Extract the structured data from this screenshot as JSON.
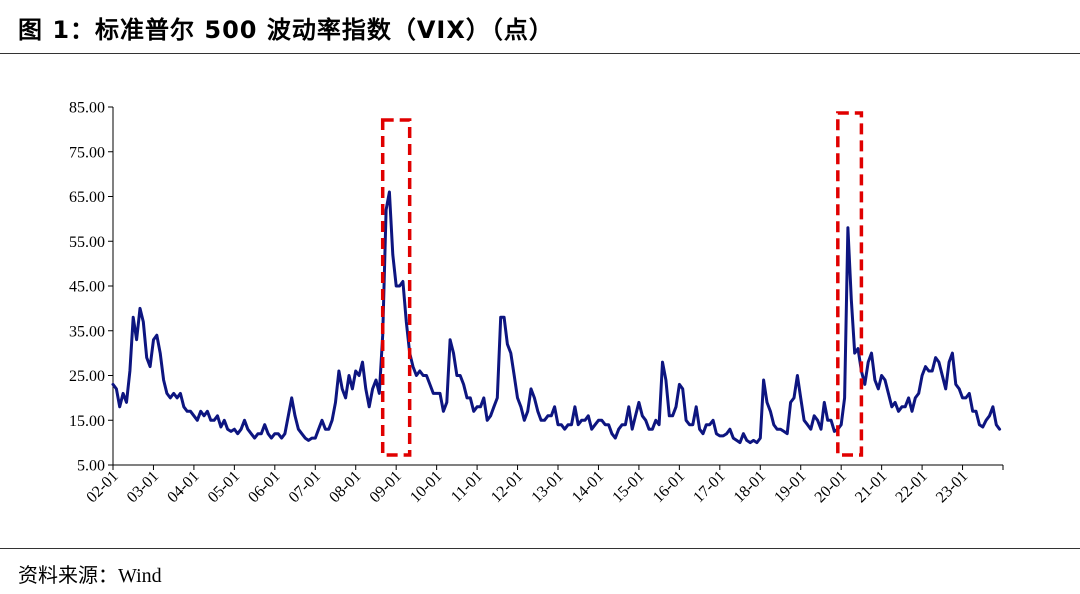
{
  "title": "图 1：标准普尔 500 波动率指数（VIX）（点）",
  "source_prefix": "资料来源：",
  "source_name": "Wind",
  "chart_data": {
    "type": "line",
    "title": "图 1：标准普尔 500 波动率指数（VIX）（点）",
    "xlabel": "",
    "ylabel": "",
    "ylim": [
      5,
      85
    ],
    "yticks": [
      "5.00",
      "15.00",
      "25.00",
      "35.00",
      "45.00",
      "55.00",
      "65.00",
      "75.00",
      "85.00"
    ],
    "xlim": [
      "2002-01",
      "2023-12"
    ],
    "xticks": [
      "02-01",
      "03-01",
      "04-01",
      "05-01",
      "06-01",
      "07-01",
      "08-01",
      "09-01",
      "10-01",
      "11-01",
      "12-01",
      "13-01",
      "14-01",
      "15-01",
      "16-01",
      "17-01",
      "18-01",
      "19-01",
      "20-01",
      "21-01",
      "22-01",
      "23-01"
    ],
    "grid": false,
    "legend": "none",
    "line_color": "#0d1580",
    "highlight_color": "#e00000",
    "highlights": [
      {
        "x_start": "2008-09",
        "x_end": "2009-05"
      },
      {
        "x_start": "2019-12",
        "x_end": "2020-07"
      }
    ],
    "series": [
      {
        "points": [
          [
            "2002-01",
            23
          ],
          [
            "2002-02",
            22
          ],
          [
            "2002-03",
            18
          ],
          [
            "2002-04",
            21
          ],
          [
            "2002-05",
            19
          ],
          [
            "2002-06",
            26
          ],
          [
            "2002-07",
            38
          ],
          [
            "2002-08",
            33
          ],
          [
            "2002-09",
            40
          ],
          [
            "2002-10",
            37
          ],
          [
            "2002-11",
            29
          ],
          [
            "2002-12",
            27
          ],
          [
            "2003-01",
            33
          ],
          [
            "2003-02",
            34
          ],
          [
            "2003-03",
            30
          ],
          [
            "2003-04",
            24
          ],
          [
            "2003-05",
            21
          ],
          [
            "2003-06",
            20
          ],
          [
            "2003-07",
            21
          ],
          [
            "2003-08",
            20
          ],
          [
            "2003-09",
            21
          ],
          [
            "2003-10",
            18
          ],
          [
            "2003-11",
            17
          ],
          [
            "2003-12",
            17
          ],
          [
            "2004-01",
            16
          ],
          [
            "2004-02",
            15
          ],
          [
            "2004-03",
            17
          ],
          [
            "2004-04",
            16
          ],
          [
            "2004-05",
            17
          ],
          [
            "2004-06",
            15
          ],
          [
            "2004-07",
            15
          ],
          [
            "2004-08",
            16
          ],
          [
            "2004-09",
            13.5
          ],
          [
            "2004-10",
            15
          ],
          [
            "2004-11",
            13
          ],
          [
            "2004-12",
            12.5
          ],
          [
            "2005-01",
            13
          ],
          [
            "2005-02",
            12
          ],
          [
            "2005-03",
            13
          ],
          [
            "2005-04",
            15
          ],
          [
            "2005-05",
            13
          ],
          [
            "2005-06",
            12
          ],
          [
            "2005-07",
            11
          ],
          [
            "2005-08",
            12
          ],
          [
            "2005-09",
            12
          ],
          [
            "2005-10",
            14
          ],
          [
            "2005-11",
            12
          ],
          [
            "2005-12",
            11
          ],
          [
            "2006-01",
            12
          ],
          [
            "2006-02",
            12
          ],
          [
            "2006-03",
            11
          ],
          [
            "2006-04",
            12
          ],
          [
            "2006-05",
            16
          ],
          [
            "2006-06",
            20
          ],
          [
            "2006-07",
            16
          ],
          [
            "2006-08",
            13
          ],
          [
            "2006-09",
            12
          ],
          [
            "2006-10",
            11
          ],
          [
            "2006-11",
            10.5
          ],
          [
            "2006-12",
            11
          ],
          [
            "2007-01",
            11
          ],
          [
            "2007-02",
            13
          ],
          [
            "2007-03",
            15
          ],
          [
            "2007-04",
            13
          ],
          [
            "2007-05",
            13
          ],
          [
            "2007-06",
            15
          ],
          [
            "2007-07",
            19
          ],
          [
            "2007-08",
            26
          ],
          [
            "2007-09",
            22
          ],
          [
            "2007-10",
            20
          ],
          [
            "2007-11",
            25
          ],
          [
            "2007-12",
            22
          ],
          [
            "2008-01",
            26
          ],
          [
            "2008-02",
            25
          ],
          [
            "2008-03",
            28
          ],
          [
            "2008-04",
            22
          ],
          [
            "2008-05",
            18
          ],
          [
            "2008-06",
            22
          ],
          [
            "2008-07",
            24
          ],
          [
            "2008-08",
            21
          ],
          [
            "2008-09",
            34
          ],
          [
            "2008-10",
            62
          ],
          [
            "2008-11",
            66
          ],
          [
            "2008-12",
            52
          ],
          [
            "2009-01",
            45
          ],
          [
            "2009-02",
            45
          ],
          [
            "2009-03",
            46
          ],
          [
            "2009-04",
            37
          ],
          [
            "2009-05",
            30
          ],
          [
            "2009-06",
            27
          ],
          [
            "2009-07",
            25
          ],
          [
            "2009-08",
            26
          ],
          [
            "2009-09",
            25
          ],
          [
            "2009-10",
            25
          ],
          [
            "2009-11",
            23
          ],
          [
            "2009-12",
            21
          ],
          [
            "2010-01",
            21
          ],
          [
            "2010-02",
            21
          ],
          [
            "2010-03",
            17
          ],
          [
            "2010-04",
            19
          ],
          [
            "2010-05",
            33
          ],
          [
            "2010-06",
            30
          ],
          [
            "2010-07",
            25
          ],
          [
            "2010-08",
            25
          ],
          [
            "2010-09",
            23
          ],
          [
            "2010-10",
            20
          ],
          [
            "2010-11",
            20
          ],
          [
            "2010-12",
            17
          ],
          [
            "2011-01",
            18
          ],
          [
            "2011-02",
            18
          ],
          [
            "2011-03",
            20
          ],
          [
            "2011-04",
            15
          ],
          [
            "2011-05",
            16
          ],
          [
            "2011-06",
            18
          ],
          [
            "2011-07",
            20
          ],
          [
            "2011-08",
            38
          ],
          [
            "2011-09",
            38
          ],
          [
            "2011-10",
            32
          ],
          [
            "2011-11",
            30
          ],
          [
            "2011-12",
            25
          ],
          [
            "2012-01",
            20
          ],
          [
            "2012-02",
            18
          ],
          [
            "2012-03",
            15
          ],
          [
            "2012-04",
            17
          ],
          [
            "2012-05",
            22
          ],
          [
            "2012-06",
            20
          ],
          [
            "2012-07",
            17
          ],
          [
            "2012-08",
            15
          ],
          [
            "2012-09",
            15
          ],
          [
            "2012-10",
            16
          ],
          [
            "2012-11",
            16
          ],
          [
            "2012-12",
            18
          ],
          [
            "2013-01",
            14
          ],
          [
            "2013-02",
            14
          ],
          [
            "2013-03",
            13
          ],
          [
            "2013-04",
            14
          ],
          [
            "2013-05",
            14
          ],
          [
            "2013-06",
            18
          ],
          [
            "2013-07",
            14
          ],
          [
            "2013-08",
            15
          ],
          [
            "2013-09",
            15
          ],
          [
            "2013-10",
            16
          ],
          [
            "2013-11",
            13
          ],
          [
            "2013-12",
            14
          ],
          [
            "2014-01",
            15
          ],
          [
            "2014-02",
            15
          ],
          [
            "2014-03",
            14
          ],
          [
            "2014-04",
            14
          ],
          [
            "2014-05",
            12
          ],
          [
            "2014-06",
            11
          ],
          [
            "2014-07",
            13
          ],
          [
            "2014-08",
            14
          ],
          [
            "2014-09",
            14
          ],
          [
            "2014-10",
            18
          ],
          [
            "2014-11",
            13
          ],
          [
            "2014-12",
            16
          ],
          [
            "2015-01",
            19
          ],
          [
            "2015-02",
            16
          ],
          [
            "2015-03",
            15
          ],
          [
            "2015-04",
            13
          ],
          [
            "2015-05",
            13
          ],
          [
            "2015-06",
            15
          ],
          [
            "2015-07",
            14
          ],
          [
            "2015-08",
            28
          ],
          [
            "2015-09",
            24
          ],
          [
            "2015-10",
            16
          ],
          [
            "2015-11",
            16
          ],
          [
            "2015-12",
            18
          ],
          [
            "2016-01",
            23
          ],
          [
            "2016-02",
            22
          ],
          [
            "2016-03",
            15
          ],
          [
            "2016-04",
            14
          ],
          [
            "2016-05",
            14
          ],
          [
            "2016-06",
            18
          ],
          [
            "2016-07",
            13
          ],
          [
            "2016-08",
            12
          ],
          [
            "2016-09",
            14
          ],
          [
            "2016-10",
            14
          ],
          [
            "2016-11",
            15
          ],
          [
            "2016-12",
            12
          ],
          [
            "2017-01",
            11.5
          ],
          [
            "2017-02",
            11.5
          ],
          [
            "2017-03",
            12
          ],
          [
            "2017-04",
            13
          ],
          [
            "2017-05",
            11
          ],
          [
            "2017-06",
            10.5
          ],
          [
            "2017-07",
            10
          ],
          [
            "2017-08",
            12
          ],
          [
            "2017-09",
            10.5
          ],
          [
            "2017-10",
            10
          ],
          [
            "2017-11",
            10.5
          ],
          [
            "2017-12",
            10
          ],
          [
            "2018-01",
            11
          ],
          [
            "2018-02",
            24
          ],
          [
            "2018-03",
            19
          ],
          [
            "2018-04",
            17
          ],
          [
            "2018-05",
            14
          ],
          [
            "2018-06",
            13
          ],
          [
            "2018-07",
            13
          ],
          [
            "2018-08",
            12.5
          ],
          [
            "2018-09",
            12
          ],
          [
            "2018-10",
            19
          ],
          [
            "2018-11",
            20
          ],
          [
            "2018-12",
            25
          ],
          [
            "2019-01",
            20
          ],
          [
            "2019-02",
            15
          ],
          [
            "2019-03",
            14
          ],
          [
            "2019-04",
            13
          ],
          [
            "2019-05",
            16
          ],
          [
            "2019-06",
            15
          ],
          [
            "2019-07",
            13
          ],
          [
            "2019-08",
            19
          ],
          [
            "2019-09",
            15
          ],
          [
            "2019-10",
            15
          ],
          [
            "2019-11",
            12.5
          ],
          [
            "2019-12",
            13
          ],
          [
            "2020-01",
            14
          ],
          [
            "2020-02",
            20
          ],
          [
            "2020-03",
            58
          ],
          [
            "2020-04",
            42
          ],
          [
            "2020-05",
            30
          ],
          [
            "2020-06",
            31
          ],
          [
            "2020-07",
            26
          ],
          [
            "2020-08",
            23
          ],
          [
            "2020-09",
            28
          ],
          [
            "2020-10",
            30
          ],
          [
            "2020-11",
            24
          ],
          [
            "2020-12",
            22
          ],
          [
            "2021-01",
            25
          ],
          [
            "2021-02",
            24
          ],
          [
            "2021-03",
            21
          ],
          [
            "2021-04",
            18
          ],
          [
            "2021-05",
            19
          ],
          [
            "2021-06",
            17
          ],
          [
            "2021-07",
            18
          ],
          [
            "2021-08",
            18
          ],
          [
            "2021-09",
            20
          ],
          [
            "2021-10",
            17
          ],
          [
            "2021-11",
            20
          ],
          [
            "2021-12",
            21
          ],
          [
            "2022-01",
            25
          ],
          [
            "2022-02",
            27
          ],
          [
            "2022-03",
            26
          ],
          [
            "2022-04",
            26
          ],
          [
            "2022-05",
            29
          ],
          [
            "2022-06",
            28
          ],
          [
            "2022-07",
            25
          ],
          [
            "2022-08",
            22
          ],
          [
            "2022-09",
            28
          ],
          [
            "2022-10",
            30
          ],
          [
            "2022-11",
            23
          ],
          [
            "2022-12",
            22
          ],
          [
            "2023-01",
            20
          ],
          [
            "2023-02",
            20
          ],
          [
            "2023-03",
            21
          ],
          [
            "2023-04",
            17
          ],
          [
            "2023-05",
            17
          ],
          [
            "2023-06",
            14
          ],
          [
            "2023-07",
            13.5
          ],
          [
            "2023-08",
            15
          ],
          [
            "2023-09",
            16
          ],
          [
            "2023-10",
            18
          ],
          [
            "2023-11",
            14
          ],
          [
            "2023-12",
            13
          ]
        ]
      }
    ]
  }
}
